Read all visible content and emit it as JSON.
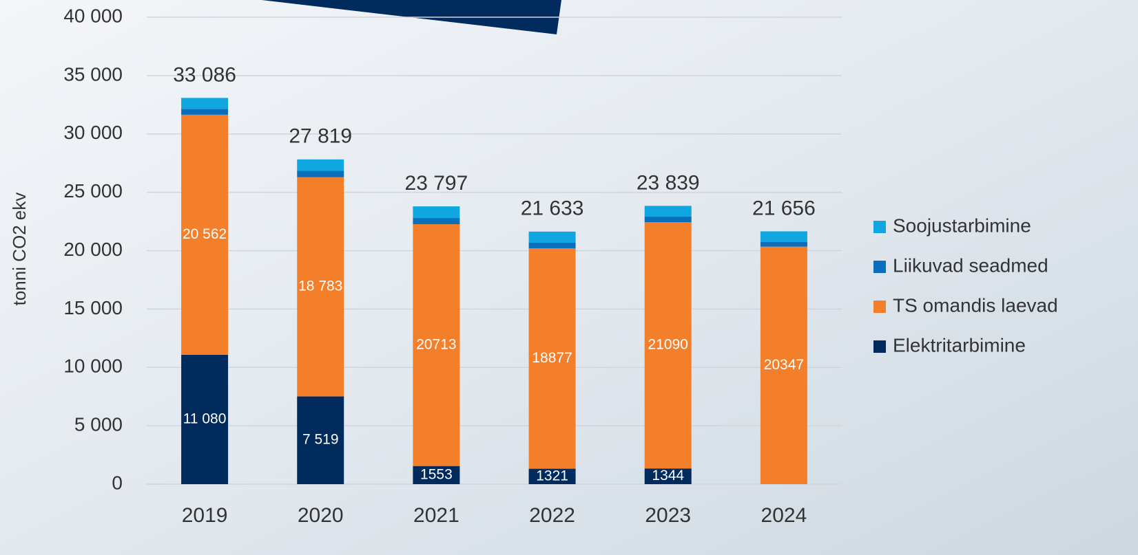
{
  "chart_data": {
    "type": "stacked_bar",
    "y_label": "tonni CO2 ekv",
    "categories": [
      "2019",
      "2020",
      "2021",
      "2022",
      "2023",
      "2024"
    ],
    "series": [
      {
        "name": "Elektritarbimine",
        "color": "#002b5c",
        "values": [
          11080,
          7519,
          1553,
          1321,
          1344,
          0
        ],
        "value_labels": [
          "11 080",
          "7 519",
          "1553",
          "1321",
          "1344",
          null
        ]
      },
      {
        "name": "TS omandis laevad",
        "color": "#f47f2a",
        "values": [
          20562,
          18783,
          20713,
          18877,
          21090,
          20347
        ],
        "value_labels": [
          "20 562",
          "18 783",
          "20713",
          "18877",
          "21090",
          "20347"
        ]
      },
      {
        "name": "Liikuvad seadmed",
        "color": "#0a6fba",
        "values": [
          500,
          530,
          530,
          480,
          480,
          390
        ]
      },
      {
        "name": "Soojustarbimine",
        "color": "#10a6e0",
        "values": [
          944,
          987,
          1001,
          955,
          925,
          919
        ]
      }
    ],
    "totals": [
      33086,
      27819,
      23797,
      21633,
      23839,
      21656
    ],
    "total_labels": [
      "33 086",
      "27 819",
      "23 797",
      "21 633",
      "23 839",
      "21 656"
    ],
    "ylim": [
      0,
      40000
    ],
    "yticks": [
      0,
      {
        "value": 5000,
        "label": "5 000"
      },
      {
        "value": 10000,
        "label": "10 000"
      },
      {
        "value": 15000,
        "label": "15 000"
      },
      {
        "value": 20000,
        "label": "20 000"
      },
      {
        "value": 25000,
        "label": "25 000"
      },
      {
        "value": 30000,
        "label": "30 000"
      },
      {
        "value": 35000,
        "label": "35 000"
      },
      {
        "value": 40000,
        "label": "40 000"
      }
    ],
    "grid": true,
    "legend": "right"
  }
}
